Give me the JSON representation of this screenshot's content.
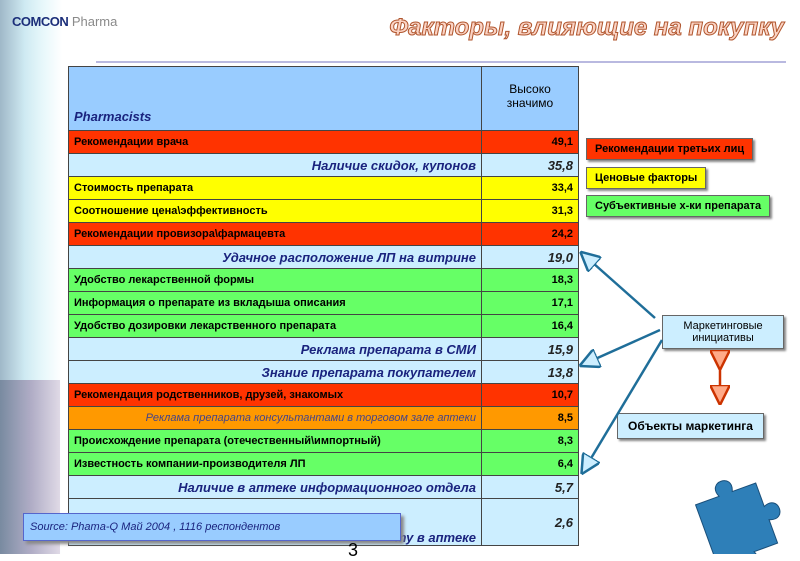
{
  "header": {
    "logo_brand": "COMCON",
    "logo_sub": "Pharma",
    "title": "Факторы, влияющие на покупку"
  },
  "table": {
    "col1": "Pharmacists",
    "col2": "Высоко значимо",
    "rows": [
      {
        "label": "Рекомендации врача",
        "value": "49,1",
        "kind": "red"
      },
      {
        "label": "Наличие скидок, купонов",
        "value": "35,8",
        "kind": "blu"
      },
      {
        "label": "Стоимость препарата",
        "value": "33,4",
        "kind": "yel"
      },
      {
        "label": "Соотношение цена\\эффективность",
        "value": "31,3",
        "kind": "yel"
      },
      {
        "label": "Рекомендации провизора\\фармацевта",
        "value": "24,2",
        "kind": "red"
      },
      {
        "label": "Удачное расположение ЛП на витрине",
        "value": "19,0",
        "kind": "blu"
      },
      {
        "label": "Удобство лекарственной формы",
        "value": "18,3",
        "kind": "grn"
      },
      {
        "label": "Информация о препарате из вкладыша описания",
        "value": "17,1",
        "kind": "grn"
      },
      {
        "label": "Удобство дозировки лекарственного препарата",
        "value": "16,4",
        "kind": "grn"
      },
      {
        "label": "Реклама препарата в СМИ",
        "value": "15,9",
        "kind": "blu"
      },
      {
        "label": "Знание препарата покупателем",
        "value": "13,8",
        "kind": "blu"
      },
      {
        "label": "Рекомендация родственников, друзей, знакомых",
        "value": "10,7",
        "kind": "red"
      },
      {
        "label": "Реклама препарата консультантами в торговом зале аптеки",
        "value": "8,5",
        "kind": "org"
      },
      {
        "label": "Происхождение препарата (отечественный\\импортный)",
        "value": "8,3",
        "kind": "grn"
      },
      {
        "label": "Известность компании-производителя ЛП",
        "value": "6,4",
        "kind": "grn"
      },
      {
        "label": "Наличие в аптеке информационного отдела",
        "value": "5,7",
        "kind": "blu"
      },
      {
        "label": "ту в аптеке",
        "value": "2,6",
        "kind": "blu"
      }
    ]
  },
  "legend": {
    "third_party": "Рекомендации третьих лиц",
    "price": "Ценовые факторы",
    "subjective": "Субъективные х-ки препарата"
  },
  "diagram": {
    "marketing_initiatives": "Маркетинговые инициативы",
    "marketing_objects": "Объекты маркетинга"
  },
  "colors": {
    "red": "#ff3300",
    "yellow": "#ffff00",
    "green": "#66ff66",
    "blue": "#cceeff",
    "orange": "#ff9900",
    "header": "#99ccff"
  },
  "footer": {
    "source": "Source: Phama-Q  Май 2004 , 1116 респондентов",
    "page": "3"
  }
}
